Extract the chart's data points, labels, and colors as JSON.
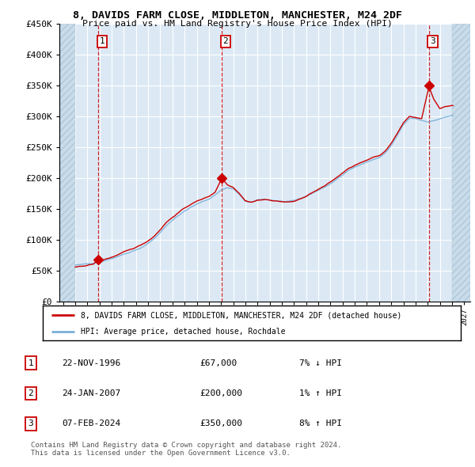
{
  "title": "8, DAVIDS FARM CLOSE, MIDDLETON, MANCHESTER, M24 2DF",
  "subtitle": "Price paid vs. HM Land Registry's House Price Index (HPI)",
  "ylim": [
    0,
    450000
  ],
  "yticks": [
    0,
    50000,
    100000,
    150000,
    200000,
    250000,
    300000,
    350000,
    400000,
    450000
  ],
  "ytick_labels": [
    "£0",
    "£50K",
    "£100K",
    "£150K",
    "£200K",
    "£250K",
    "£300K",
    "£350K",
    "£400K",
    "£450K"
  ],
  "xlim_start": 1993.7,
  "xlim_end": 2027.5,
  "background_color": "#ffffff",
  "plot_bg_color": "#dce9f5",
  "grid_color": "#ffffff",
  "sales": [
    {
      "date_num": 1996.9,
      "price": 67000,
      "label": "1"
    },
    {
      "date_num": 2007.07,
      "price": 200000,
      "label": "2"
    },
    {
      "date_num": 2024.1,
      "price": 350000,
      "label": "3"
    }
  ],
  "sale_color": "#cc0000",
  "hpi_color": "#7ab0d8",
  "legend_entries": [
    "8, DAVIDS FARM CLOSE, MIDDLETON, MANCHESTER, M24 2DF (detached house)",
    "HPI: Average price, detached house, Rochdale"
  ],
  "table_rows": [
    {
      "num": "1",
      "date": "22-NOV-1996",
      "price": "£67,000",
      "hpi": "7% ↓ HPI"
    },
    {
      "num": "2",
      "date": "24-JAN-2007",
      "price": "£200,000",
      "hpi": "1% ↑ HPI"
    },
    {
      "num": "3",
      "date": "07-FEB-2024",
      "price": "£350,000",
      "hpi": "8% ↑ HPI"
    }
  ],
  "footer": "Contains HM Land Registry data © Crown copyright and database right 2024.\nThis data is licensed under the Open Government Licence v3.0.",
  "hatch_left_end": 1994.99,
  "hatch_right_start": 2025.99,
  "data_start_year": 1995,
  "data_end_year": 2026
}
